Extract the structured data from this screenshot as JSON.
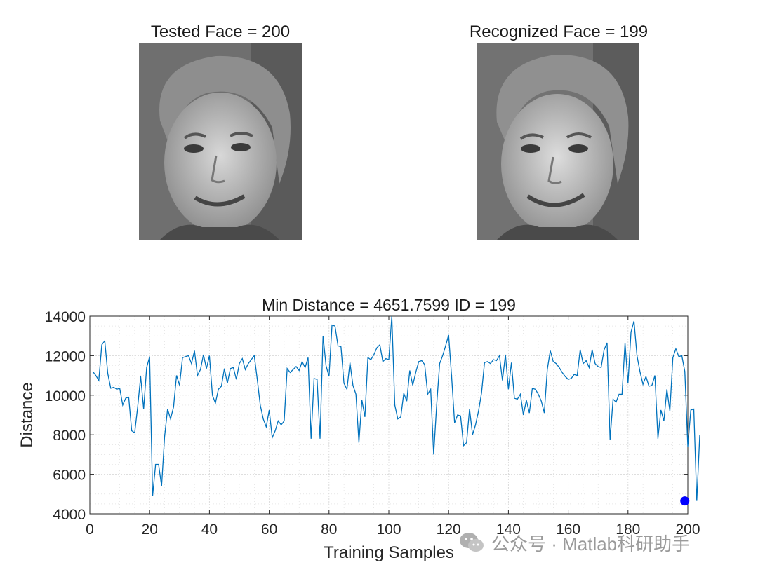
{
  "panels": {
    "tested_title": "Tested Face = 200",
    "recognized_title": "Recognized Face = 199"
  },
  "watermark": {
    "text": "公众号 · Matlab科研助手"
  },
  "colors": {
    "line": "#0072BD",
    "marker": "#0000FF",
    "grid": "#d9d9d9",
    "axis": "#262626"
  },
  "chart_data": {
    "type": "line",
    "title": "Min Distance = 4651.7599 ID = 199",
    "xlabel": "Training Samples",
    "ylabel": "Distance",
    "xlim": [
      0,
      200
    ],
    "ylim": [
      4000,
      14000
    ],
    "xticks": [
      0,
      20,
      40,
      60,
      80,
      100,
      120,
      140,
      160,
      180,
      200
    ],
    "yticks": [
      4000,
      6000,
      8000,
      10000,
      12000,
      14000
    ],
    "grid": true,
    "series": [
      {
        "name": "Distance",
        "x_start": 1,
        "values": [
          11200,
          11000,
          10750,
          12550,
          12750,
          11100,
          10350,
          10400,
          10300,
          10350,
          9500,
          9850,
          9900,
          8200,
          8100,
          9400,
          10950,
          9300,
          11400,
          11950,
          4900,
          6500,
          6500,
          5400,
          7900,
          9300,
          8800,
          9400,
          11000,
          10500,
          11900,
          11950,
          12000,
          11600,
          12250,
          11000,
          11300,
          12050,
          11350,
          12000,
          10000,
          9600,
          10300,
          10450,
          11350,
          10600,
          11350,
          11400,
          10800,
          11600,
          11850,
          11300,
          11600,
          11800,
          12000,
          10800,
          9500,
          8800,
          8400,
          9250,
          7850,
          8200,
          8700,
          8500,
          8700,
          11350,
          11150,
          11300,
          11450,
          11250,
          11700,
          11400,
          11900,
          7800,
          10850,
          10800,
          7800,
          13000,
          11500,
          10950,
          13550,
          13500,
          12500,
          12450,
          10600,
          10300,
          11650,
          10500,
          10050,
          7600,
          9750,
          8900,
          11900,
          11800,
          12050,
          12400,
          12550,
          11700,
          11850,
          11800,
          14000,
          9500,
          8800,
          8900,
          10100,
          9700,
          11250,
          10500,
          11150,
          11700,
          11750,
          11550,
          10050,
          10300,
          7000,
          9500,
          11600,
          12000,
          12500,
          13050,
          10950,
          8600,
          9000,
          8950,
          7450,
          7600,
          9300,
          8000,
          8500,
          9200,
          10100,
          11650,
          11700,
          11600,
          11800,
          11750,
          12000,
          10750,
          12050,
          10300,
          11650,
          9850,
          9800,
          10050,
          9000,
          9750,
          9100,
          10350,
          10300,
          10050,
          9700,
          9100,
          11300,
          12250,
          11700,
          11600,
          11400,
          11150,
          10950,
          10800,
          10850,
          11050,
          11000,
          12300,
          11600,
          11750,
          11400,
          12300,
          11600,
          11450,
          11400,
          12300,
          12650,
          7750,
          9800,
          9650,
          10050,
          10050,
          12650,
          10600,
          13200,
          13750,
          12000,
          11200,
          10550,
          10950,
          10450,
          10500,
          11000,
          7800,
          9250,
          8700,
          10300,
          9200,
          11900,
          12350,
          11950,
          12000,
          11200,
          7400,
          9250,
          9300,
          4651.7599,
          8000
        ]
      }
    ],
    "min_point": {
      "x": 199,
      "y": 4651.7599
    },
    "x_tick_labels": [
      "0",
      "20",
      "40",
      "60",
      "80",
      "100",
      "120",
      "140",
      "160",
      "180",
      "200"
    ],
    "y_tick_labels": [
      "4000",
      "6000",
      "8000",
      "10000",
      "12000",
      "14000"
    ]
  }
}
